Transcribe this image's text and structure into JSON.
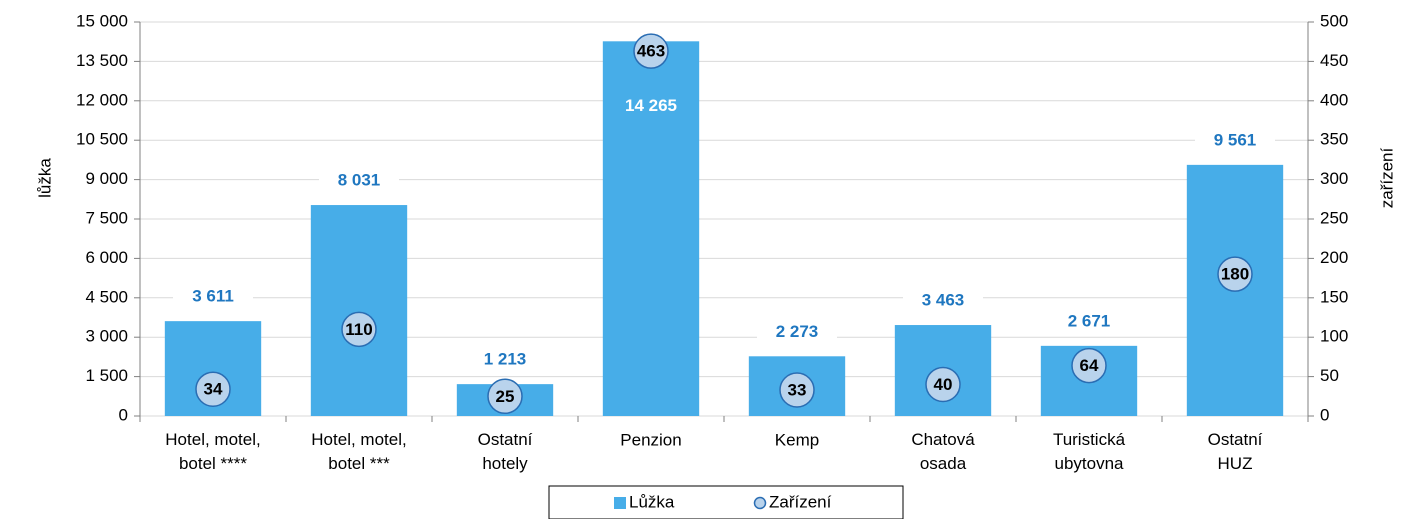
{
  "chart_data": {
    "type": "bar",
    "y_label": "lůžka",
    "y2_label": "zařízení",
    "categories": [
      "Hotel, motel,\nbotel ****",
      "Hotel, motel,\nbotel ***",
      "Ostatní\nhotely",
      "Penzion",
      "Kemp",
      "Chatová\nosada",
      "Turistická\nubytovna",
      "Ostatní\nHUZ"
    ],
    "series": [
      {
        "name": "Lůžka",
        "type": "bar",
        "color": "#47ade8",
        "values": [
          3611,
          8031,
          1213,
          14265,
          2273,
          3463,
          2671,
          9561
        ],
        "value_labels": [
          "3 611",
          "8 031",
          "1 213",
          "14 265",
          "2 273",
          "3 463",
          "2 671",
          "9 561"
        ]
      },
      {
        "name": "Zařízení",
        "type": "scatter",
        "axis": "y2",
        "color": "#b9d3ec",
        "values": [
          34,
          110,
          25,
          463,
          33,
          40,
          64,
          180
        ]
      }
    ],
    "ylim": [
      0,
      15000
    ],
    "yticks": [
      0,
      {
        "value": 1500,
        "label": "1 500"
      },
      {
        "value": 3000,
        "label": "3 000"
      },
      {
        "value": 4500,
        "label": "4 500"
      },
      {
        "value": 6000,
        "label": "6 000"
      },
      {
        "value": 7500,
        "label": "7 500"
      },
      {
        "value": 9000,
        "label": "9 000"
      },
      {
        "value": 10500,
        "label": "10 500"
      },
      {
        "value": 12000,
        "label": "12 000"
      },
      {
        "value": 13500,
        "label": "13 500"
      },
      {
        "value": 15000,
        "label": "15 000"
      }
    ],
    "y2lim": [
      0,
      500
    ],
    "y2ticks": [
      0,
      50,
      100,
      150,
      200,
      250,
      300,
      350,
      400,
      450,
      500
    ],
    "grid": true,
    "legend": "bottom"
  }
}
